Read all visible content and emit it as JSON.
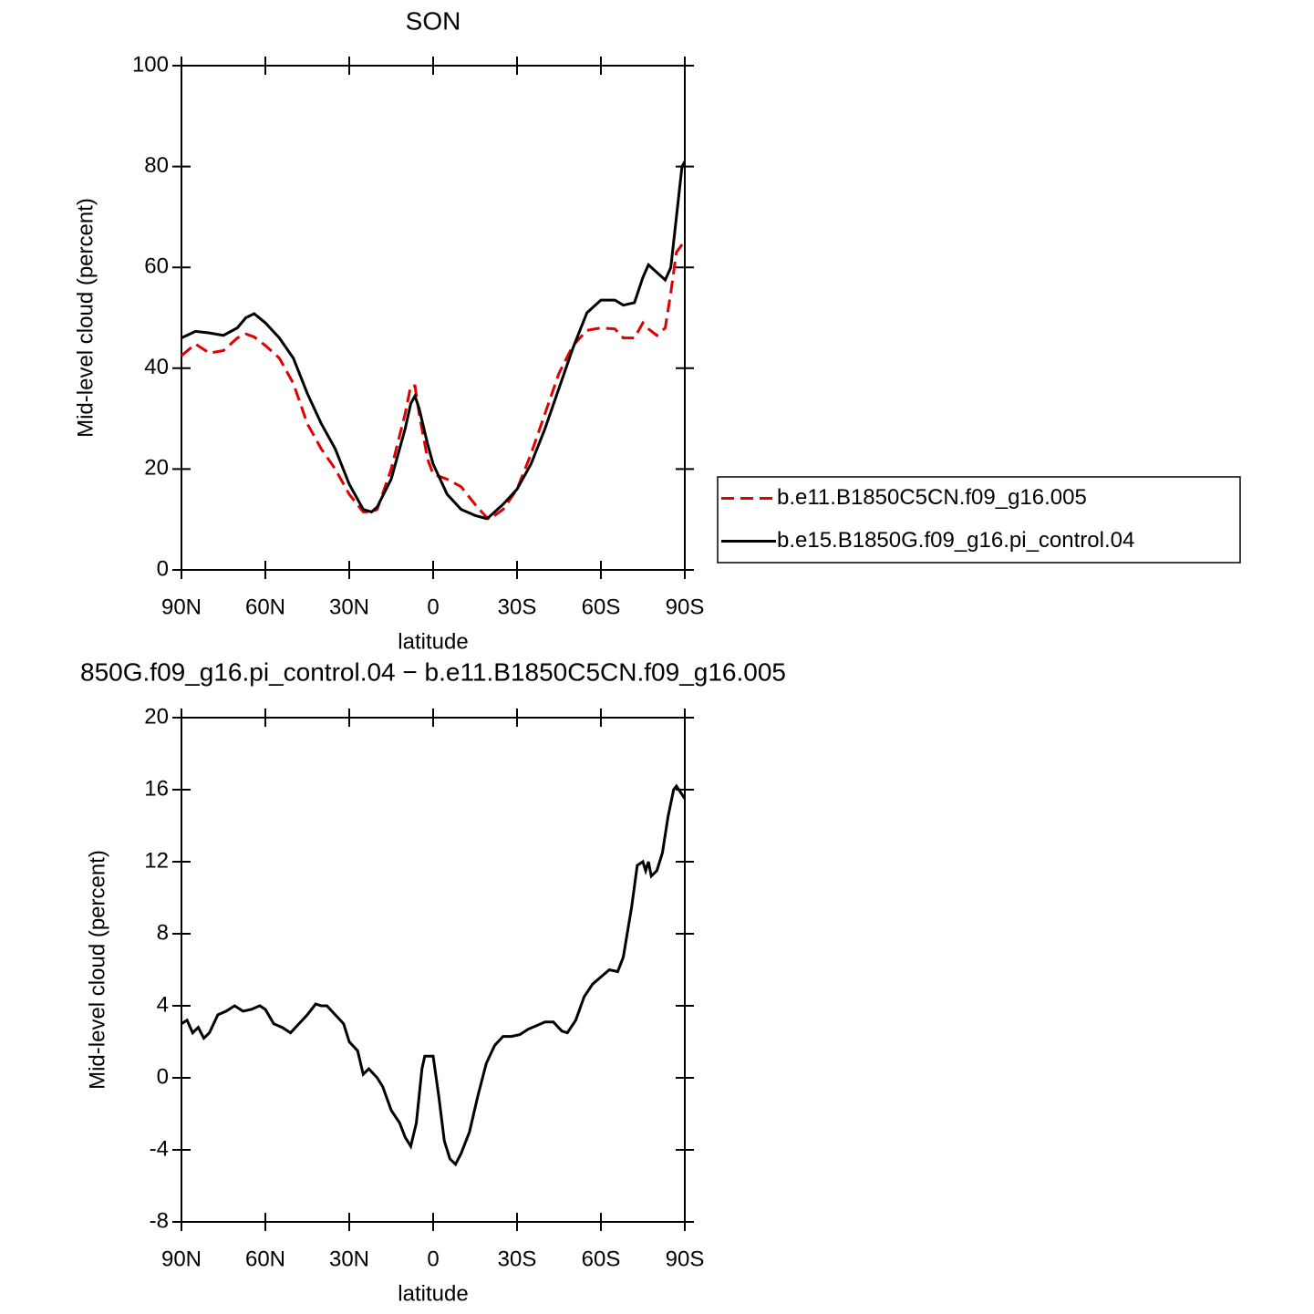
{
  "chart_data": [
    {
      "type": "line",
      "title": "SON",
      "xlabel": "latitude",
      "ylabel": "Mid-level cloud (percent)",
      "xlim": [
        90,
        -90
      ],
      "ylim": [
        0,
        100
      ],
      "xticks": [
        {
          "value": 90,
          "label": "90N"
        },
        {
          "value": 60,
          "label": "60N"
        },
        {
          "value": 30,
          "label": "30N"
        },
        0,
        {
          "value": -30,
          "label": "30S"
        },
        {
          "value": -60,
          "label": "60S"
        },
        {
          "value": -90,
          "label": "90S"
        }
      ],
      "yticks": [
        0,
        20,
        40,
        60,
        80,
        100
      ],
      "legend": "right",
      "x": [
        90,
        85,
        80,
        75,
        70,
        67,
        64,
        60,
        55,
        50,
        45,
        40,
        35,
        30,
        25,
        22,
        20,
        15,
        10,
        8,
        6.5,
        5,
        2,
        0,
        -5,
        -10,
        -15,
        -19,
        -20,
        -25,
        -30,
        -35,
        -40,
        -45,
        -50,
        -55,
        -60,
        -65,
        -68,
        -72,
        -75,
        -77,
        -80,
        -83,
        -85,
        -87,
        -89,
        -90
      ],
      "series": [
        {
          "name": "b.e11.B1850C5CN.f09_g16.005",
          "color": "#e00000",
          "dash": true,
          "values": [
            42.5,
            44.8,
            43,
            43.5,
            46,
            46.8,
            46.2,
            44.5,
            42,
            37,
            29,
            24,
            20,
            15,
            11.5,
            11.5,
            12,
            20,
            31,
            36.5,
            36.5,
            31,
            22,
            19,
            18,
            16.5,
            13,
            10.5,
            10,
            12,
            16,
            23,
            31,
            39,
            44.5,
            47.5,
            48,
            47.8,
            46,
            46,
            49,
            47.8,
            46.5,
            48,
            55,
            63,
            64.5,
            65
          ]
        },
        {
          "name": "b.e15.B1850G.f09_g16.pi_control.04",
          "color": "#000000",
          "dash": false,
          "values": [
            46,
            47.3,
            47,
            46.5,
            48,
            50,
            50.8,
            49,
            46,
            42,
            35,
            29,
            24,
            17,
            12,
            11.5,
            12.5,
            18,
            28,
            33,
            34.5,
            32,
            25,
            21,
            15,
            12,
            10.8,
            10.2,
            10.5,
            13,
            16,
            21,
            28,
            36,
            44,
            51,
            53.5,
            53.5,
            52.5,
            53,
            58,
            60.5,
            59,
            57.5,
            60,
            70,
            80,
            81
          ]
        }
      ]
    },
    {
      "type": "line",
      "title": "850G.f09_g16.pi_control.04 − b.e11.B1850C5CN.f09_g16.005",
      "xlabel": "latitude",
      "ylabel": "Mid-level cloud (percent)",
      "xlim": [
        90,
        -90
      ],
      "ylim": [
        -8,
        20
      ],
      "xticks": [
        {
          "value": 90,
          "label": "90N"
        },
        {
          "value": 60,
          "label": "60N"
        },
        {
          "value": 30,
          "label": "30N"
        },
        0,
        {
          "value": -30,
          "label": "30S"
        },
        {
          "value": -60,
          "label": "60S"
        },
        {
          "value": -90,
          "label": "90S"
        }
      ],
      "yticks": [
        -8,
        -4,
        0,
        4,
        8,
        12,
        16,
        20
      ],
      "x": [
        90,
        88,
        86,
        84,
        82,
        80,
        77,
        74,
        71,
        68,
        65,
        62,
        60,
        57,
        54,
        51,
        48,
        45,
        42,
        40,
        38,
        35,
        32,
        30,
        27,
        25,
        23,
        20,
        18,
        15,
        12,
        10,
        8,
        6,
        4,
        3,
        1,
        0,
        -2,
        -4,
        -6,
        -8,
        -10,
        -13,
        -16,
        -19,
        -22,
        -25,
        -28,
        -31,
        -34,
        -37,
        -40,
        -43,
        -46,
        -48,
        -51,
        -54,
        -57,
        -60,
        -63,
        -66,
        -68,
        -71,
        -73,
        -75,
        -76,
        -77,
        -78,
        -80,
        -82,
        -84,
        -86,
        -87,
        -90
      ],
      "series": [
        {
          "color": "#000000",
          "dash": false,
          "values": [
            3,
            3.2,
            2.5,
            2.8,
            2.2,
            2.5,
            3.5,
            3.7,
            4.0,
            3.7,
            3.8,
            4.0,
            3.8,
            3.0,
            2.8,
            2.5,
            3.0,
            3.5,
            4.1,
            4.0,
            4.0,
            3.5,
            3.0,
            2.0,
            1.5,
            0.2,
            0.5,
            0,
            -0.5,
            -1.8,
            -2.5,
            -3.3,
            -3.8,
            -2.5,
            0.5,
            1.2,
            1.2,
            1.2,
            -1,
            -3.5,
            -4.5,
            -4.8,
            -4.2,
            -3,
            -1,
            0.8,
            1.8,
            2.3,
            2.3,
            2.4,
            2.7,
            2.9,
            3.1,
            3.1,
            2.6,
            2.5,
            3.2,
            4.5,
            5.2,
            5.6,
            6.0,
            5.9,
            6.7,
            9.5,
            11.8,
            12.0,
            11.5,
            12,
            11.2,
            11.5,
            12.5,
            14.5,
            16,
            16.2,
            15.5
          ]
        }
      ]
    }
  ]
}
